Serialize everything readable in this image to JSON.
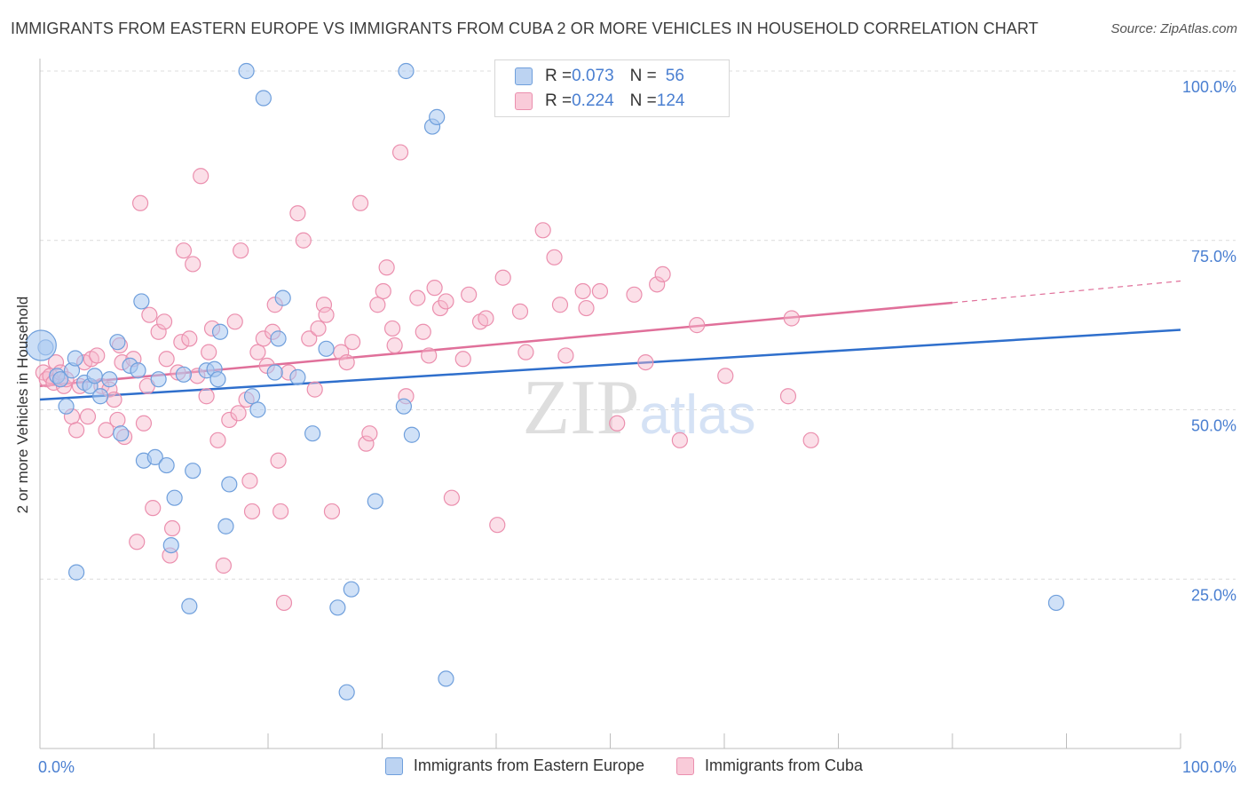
{
  "chart_data": {
    "type": "scatter",
    "title": "IMMIGRANTS FROM EASTERN EUROPE VS IMMIGRANTS FROM CUBA 2 OR MORE VEHICLES IN HOUSEHOLD CORRELATION CHART",
    "source": "Source: ZipAtlas.com",
    "xlabel": "",
    "ylabel": "2 or more Vehicles in Household",
    "xlim": [
      0,
      100
    ],
    "ylim": [
      0,
      100
    ],
    "x_tick_labels": [
      "0.0%",
      "100.0%"
    ],
    "y_tick_labels": [
      "100.0%",
      "75.0%",
      "50.0%",
      "25.0%"
    ],
    "y_tick_values": [
      100,
      75,
      50,
      25
    ],
    "watermark": "ZIPatlas",
    "colors": {
      "blue_fill": "#a9c8f0",
      "blue_stroke": "#6f9fdc",
      "blue_line": "#2f6fcc",
      "pink_fill": "#f6b9cc",
      "pink_stroke": "#eb8fae",
      "pink_line": "#e0709a",
      "axis_text": "#4a7fd1"
    },
    "legend": [
      {
        "r_label": "R = ",
        "r_value": "0.073",
        "n_label": "N = ",
        "n_value": "56"
      },
      {
        "r_label": "R = ",
        "r_value": "0.224",
        "n_label": "N = ",
        "n_value": "124"
      }
    ],
    "series": [
      {
        "name": "Immigrants from Eastern Europe",
        "color": "blue",
        "trend": {
          "x0": 0,
          "y0": 51.5,
          "x1": 100,
          "y1": 61.8
        },
        "points": [
          [
            0.5,
            59.2
          ],
          [
            1.5,
            55.0
          ],
          [
            1.8,
            54.5
          ],
          [
            2.3,
            50.5
          ],
          [
            2.8,
            55.8
          ],
          [
            3.1,
            57.6
          ],
          [
            3.2,
            26.0
          ],
          [
            3.9,
            54.0
          ],
          [
            4.4,
            53.5
          ],
          [
            4.8,
            55.0
          ],
          [
            5.3,
            52.0
          ],
          [
            6.1,
            54.5
          ],
          [
            6.8,
            60.0
          ],
          [
            7.1,
            46.5
          ],
          [
            7.9,
            56.5
          ],
          [
            8.6,
            55.8
          ],
          [
            8.9,
            66.0
          ],
          [
            9.1,
            42.5
          ],
          [
            10.1,
            43.0
          ],
          [
            10.4,
            54.5
          ],
          [
            11.1,
            41.8
          ],
          [
            11.8,
            37.0
          ],
          [
            11.5,
            30.0
          ],
          [
            12.6,
            55.2
          ],
          [
            13.1,
            21.0
          ],
          [
            13.4,
            41.0
          ],
          [
            14.6,
            55.8
          ],
          [
            15.3,
            56.0
          ],
          [
            15.6,
            54.5
          ],
          [
            15.8,
            61.5
          ],
          [
            16.3,
            32.8
          ],
          [
            16.6,
            39.0
          ],
          [
            18.1,
            100.0
          ],
          [
            18.6,
            52.0
          ],
          [
            19.1,
            50.0
          ],
          [
            19.6,
            96.0
          ],
          [
            20.6,
            55.5
          ],
          [
            20.9,
            60.5
          ],
          [
            21.3,
            66.5
          ],
          [
            22.6,
            54.8
          ],
          [
            23.9,
            46.5
          ],
          [
            25.1,
            59.0
          ],
          [
            26.1,
            20.8
          ],
          [
            26.9,
            8.3
          ],
          [
            27.3,
            23.5
          ],
          [
            29.4,
            36.5
          ],
          [
            31.9,
            50.5
          ],
          [
            32.1,
            100.0
          ],
          [
            32.6,
            46.3
          ],
          [
            34.4,
            91.8
          ],
          [
            34.8,
            93.2
          ],
          [
            35.6,
            10.3
          ],
          [
            89.1,
            21.5
          ]
        ],
        "big_points": [
          [
            0.1,
            59.5
          ]
        ]
      },
      {
        "name": "Immigrants from Cuba",
        "color": "pink",
        "trend": {
          "x0": 0,
          "y0": 53.5,
          "x1": 80,
          "y1": 65.8,
          "dash_to_x": 100,
          "dash_to_y": 69.0
        },
        "points": [
          [
            0.3,
            55.5
          ],
          [
            0.6,
            54.5
          ],
          [
            0.9,
            55.0
          ],
          [
            1.2,
            54.0
          ],
          [
            1.4,
            57.0
          ],
          [
            1.8,
            55.5
          ],
          [
            2.1,
            53.5
          ],
          [
            2.3,
            54.5
          ],
          [
            2.8,
            49.0
          ],
          [
            3.2,
            47.0
          ],
          [
            3.5,
            53.5
          ],
          [
            3.9,
            57.0
          ],
          [
            4.2,
            49.0
          ],
          [
            4.5,
            57.5
          ],
          [
            5.0,
            58.0
          ],
          [
            5.4,
            53.5
          ],
          [
            5.8,
            47.0
          ],
          [
            6.1,
            53.0
          ],
          [
            6.5,
            51.5
          ],
          [
            6.8,
            48.5
          ],
          [
            7.0,
            59.5
          ],
          [
            7.2,
            57.0
          ],
          [
            7.4,
            46.0
          ],
          [
            8.2,
            57.5
          ],
          [
            8.5,
            30.5
          ],
          [
            8.8,
            80.5
          ],
          [
            9.1,
            48.0
          ],
          [
            9.4,
            53.5
          ],
          [
            9.6,
            64.0
          ],
          [
            9.9,
            35.5
          ],
          [
            10.4,
            61.5
          ],
          [
            10.9,
            63.0
          ],
          [
            11.1,
            57.5
          ],
          [
            11.4,
            28.5
          ],
          [
            11.6,
            32.5
          ],
          [
            12.1,
            55.5
          ],
          [
            12.4,
            60.0
          ],
          [
            12.6,
            73.5
          ],
          [
            13.1,
            60.5
          ],
          [
            13.4,
            71.5
          ],
          [
            13.8,
            55.0
          ],
          [
            14.1,
            84.5
          ],
          [
            14.6,
            52.0
          ],
          [
            14.8,
            58.5
          ],
          [
            15.1,
            62.0
          ],
          [
            15.6,
            45.5
          ],
          [
            16.1,
            27.0
          ],
          [
            16.6,
            48.5
          ],
          [
            17.1,
            63.0
          ],
          [
            17.4,
            49.5
          ],
          [
            17.6,
            73.5
          ],
          [
            18.1,
            51.5
          ],
          [
            18.4,
            39.5
          ],
          [
            18.6,
            35.0
          ],
          [
            19.1,
            58.5
          ],
          [
            19.6,
            60.5
          ],
          [
            19.9,
            56.5
          ],
          [
            20.4,
            61.5
          ],
          [
            20.6,
            65.5
          ],
          [
            20.9,
            42.5
          ],
          [
            21.1,
            35.0
          ],
          [
            21.4,
            21.5
          ],
          [
            21.8,
            55.5
          ],
          [
            22.6,
            79.0
          ],
          [
            23.1,
            75.0
          ],
          [
            23.6,
            60.5
          ],
          [
            24.1,
            53.0
          ],
          [
            24.4,
            62.0
          ],
          [
            24.9,
            65.5
          ],
          [
            25.1,
            64.0
          ],
          [
            25.6,
            35.0
          ],
          [
            26.4,
            58.5
          ],
          [
            26.9,
            57.0
          ],
          [
            27.4,
            60.0
          ],
          [
            28.1,
            80.5
          ],
          [
            28.6,
            45.0
          ],
          [
            28.9,
            46.5
          ],
          [
            29.6,
            65.5
          ],
          [
            30.1,
            67.5
          ],
          [
            30.4,
            71.0
          ],
          [
            30.9,
            62.0
          ],
          [
            31.1,
            59.5
          ],
          [
            31.6,
            88.0
          ],
          [
            32.1,
            52.0
          ],
          [
            33.1,
            66.5
          ],
          [
            33.6,
            61.5
          ],
          [
            34.1,
            58.0
          ],
          [
            34.6,
            68.0
          ],
          [
            35.1,
            65.0
          ],
          [
            35.6,
            66.0
          ],
          [
            36.1,
            37.0
          ],
          [
            37.1,
            57.5
          ],
          [
            37.6,
            67.0
          ],
          [
            38.6,
            63.0
          ],
          [
            39.1,
            63.5
          ],
          [
            40.1,
            33.0
          ],
          [
            40.6,
            69.5
          ],
          [
            42.1,
            64.5
          ],
          [
            42.6,
            58.5
          ],
          [
            44.1,
            76.5
          ],
          [
            45.1,
            72.5
          ],
          [
            45.6,
            65.5
          ],
          [
            46.1,
            58.0
          ],
          [
            47.6,
            67.5
          ],
          [
            47.9,
            65.0
          ],
          [
            49.1,
            67.5
          ],
          [
            50.6,
            48.0
          ],
          [
            52.1,
            67.0
          ],
          [
            53.1,
            57.0
          ],
          [
            54.1,
            68.5
          ],
          [
            54.6,
            70.0
          ],
          [
            56.1,
            45.5
          ],
          [
            57.6,
            62.5
          ],
          [
            60.1,
            55.0
          ],
          [
            65.6,
            52.0
          ],
          [
            65.9,
            63.5
          ],
          [
            67.6,
            45.5
          ]
        ]
      }
    ]
  },
  "bottom_legend": [
    {
      "label": "Immigrants from Eastern Europe"
    },
    {
      "label": "Immigrants from Cuba"
    }
  ]
}
